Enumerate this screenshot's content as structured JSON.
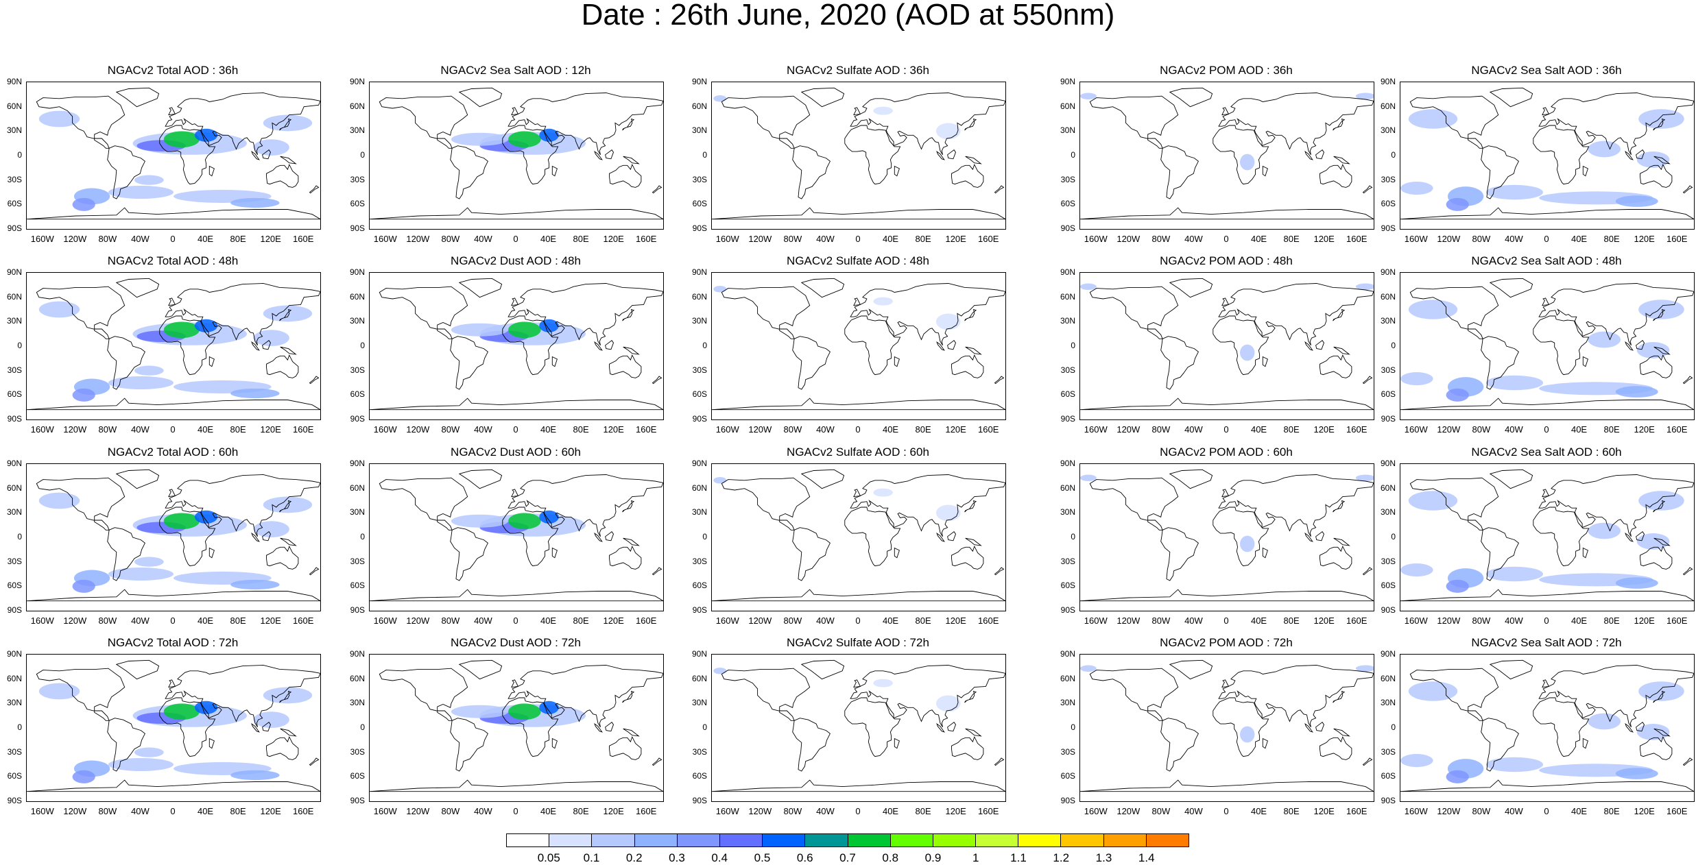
{
  "title": "Date : 26th June, 2020 (AOD at 550nm)",
  "lat_ticks": [
    "90N",
    "60N",
    "30N",
    "0",
    "30S",
    "60S",
    "90S"
  ],
  "lon_ticks": [
    "160W",
    "120W",
    "80W",
    "40W",
    "0",
    "40E",
    "80E",
    "120E",
    "160E"
  ],
  "panels": [
    [
      "NGACv2 Total AOD : 36h",
      "NGACv2 Sea Salt  AOD : 12h",
      "NGACv2 Sulfate AOD : 36h",
      "NGACv2 POM AOD : 36h",
      "NGACv2 Sea Salt AOD : 36h"
    ],
    [
      "NGACv2 Total AOD : 48h",
      "NGACv2 Dust AOD : 48h",
      "NGACv2 Sulfate AOD : 48h",
      "NGACv2 POM AOD : 48h",
      "NGACv2 Sea Salt AOD : 48h"
    ],
    [
      "NGACv2 Total AOD : 60h",
      "NGACv2 Dust AOD : 60h",
      "NGACv2 Sulfate AOD : 60h",
      "NGACv2 POM AOD : 60h",
      "NGACv2 Sea Salt AOD : 60h"
    ],
    [
      "NGACv2 Total AOD : 72h",
      "NGACv2 Dust AOD : 72h",
      "NGACv2 Sulfate AOD : 72h",
      "NGACv2 POM AOD : 72h",
      "NGACv2 Sea Salt  AOD : 72h"
    ]
  ],
  "colorbar": {
    "labels": [
      "0.05",
      "0.1",
      "0.2",
      "0.3",
      "0.4",
      "0.5",
      "0.6",
      "0.7",
      "0.8",
      "0.9",
      "1",
      "1.1",
      "1.2",
      "1.3",
      "1.4"
    ],
    "colors": [
      "#ffffff",
      "#d6e2ff",
      "#b5c9ff",
      "#8eb2ff",
      "#7f96ff",
      "#6370ff",
      "#0063ff",
      "#009696",
      "#00c633",
      "#63ff00",
      "#96ff00",
      "#c6ff33",
      "#ffff00",
      "#ffc600",
      "#ffa000",
      "#ff7c00",
      "#ff1900"
    ]
  }
}
